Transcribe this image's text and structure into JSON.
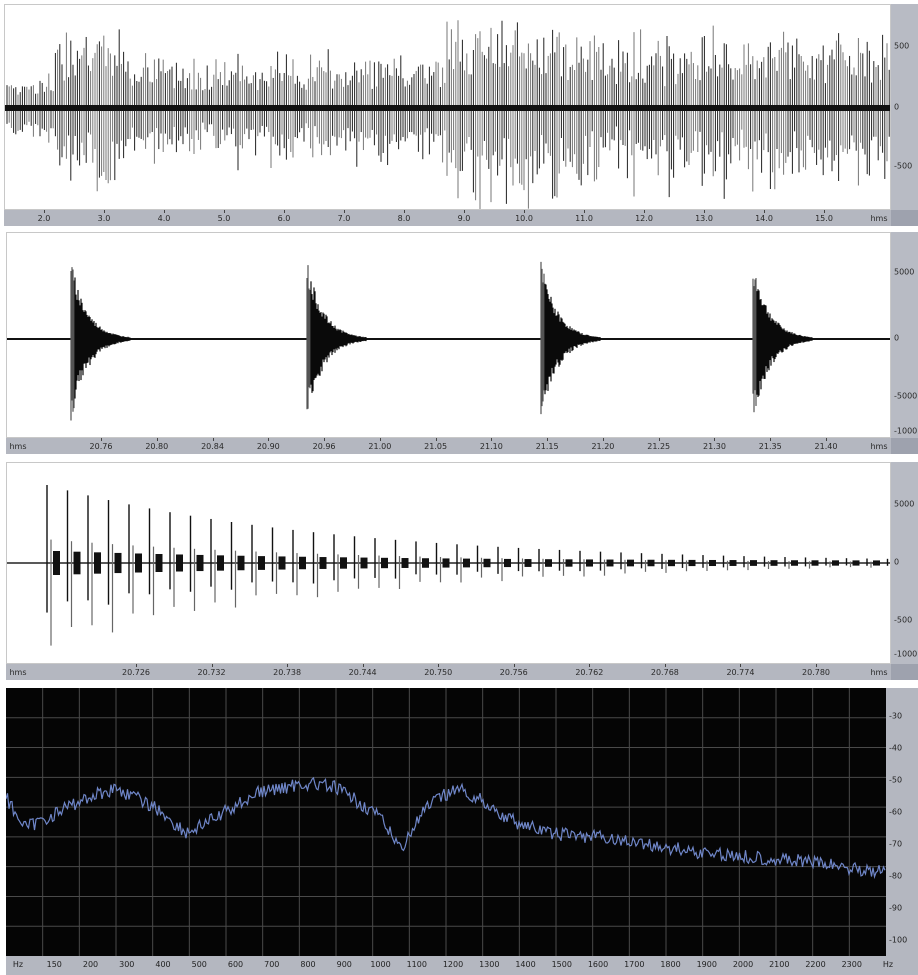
{
  "panels": {
    "overview": {
      "x_labels": [
        "2.0",
        "3.0",
        "4.0",
        "5.0",
        "6.0",
        "7.0",
        "8.0",
        "9.0",
        "10.0",
        "11.0",
        "12.0",
        "13.0",
        "14.0",
        "15.0"
      ],
      "x_unit": "hms",
      "y_labels": [
        "500",
        "0",
        "-500"
      ]
    },
    "zoom_mid": {
      "x_unit_left": "hms",
      "x_labels": [
        "20.76",
        "20.80",
        "20.84",
        "20.90",
        "20.96",
        "21.00",
        "21.05",
        "21.10",
        "21.15",
        "21.20",
        "21.25",
        "21.30",
        "21.35",
        "21.40"
      ],
      "x_unit": "hms",
      "y_labels": [
        "5000",
        "0",
        "-5000",
        "-1000"
      ]
    },
    "zoom_fine": {
      "x_unit_left": "hms",
      "x_labels": [
        "20.726",
        "20.732",
        "20.738",
        "20.744",
        "20.750",
        "20.756",
        "20.762",
        "20.768",
        "20.774",
        "20.780"
      ],
      "x_unit": "hms",
      "y_labels": [
        "5000",
        "0",
        "-500",
        "-1000"
      ]
    },
    "spectrum": {
      "y_labels": [
        "-30",
        "-40",
        "-50",
        "-60",
        "-70",
        "-80",
        "-90",
        "-100"
      ],
      "x_labels": [
        "Hz",
        "150",
        "200",
        "300",
        "400",
        "500",
        "600",
        "700",
        "800",
        "900",
        "1000",
        "1100",
        "1200",
        "1300",
        "1400",
        "1500",
        "1600",
        "1700",
        "1800",
        "1900",
        "2000",
        "2100",
        "2200",
        "2300",
        "Hz"
      ],
      "line_color": "#6f86c8",
      "grid_color": "#4a4a4a",
      "background": "#050505"
    }
  }
}
